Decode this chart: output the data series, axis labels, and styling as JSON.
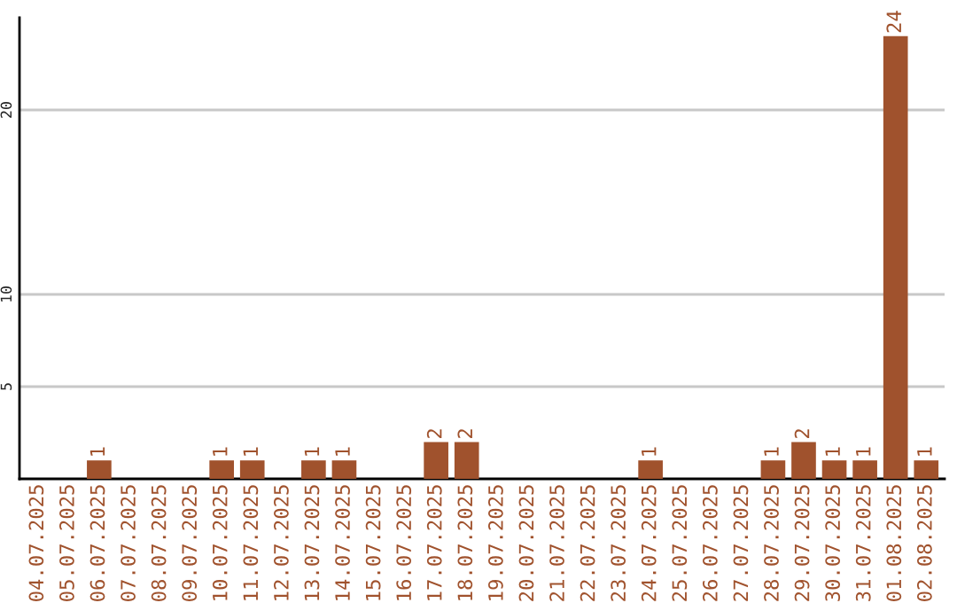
{
  "chart_data": {
    "type": "bar",
    "categories": [
      "04.07.2025",
      "05.07.2025",
      "06.07.2025",
      "07.07.2025",
      "08.07.2025",
      "09.07.2025",
      "10.07.2025",
      "11.07.2025",
      "12.07.2025",
      "13.07.2025",
      "14.07.2025",
      "15.07.2025",
      "16.07.2025",
      "17.07.2025",
      "18.07.2025",
      "19.07.2025",
      "20.07.2025",
      "21.07.2025",
      "22.07.2025",
      "23.07.2025",
      "24.07.2025",
      "25.07.2025",
      "26.07.2025",
      "27.07.2025",
      "28.07.2025",
      "29.07.2025",
      "30.07.2025",
      "31.07.2025",
      "01.08.2025",
      "02.08.2025"
    ],
    "values": [
      0,
      0,
      1,
      0,
      0,
      0,
      1,
      1,
      0,
      1,
      1,
      0,
      0,
      2,
      2,
      0,
      0,
      0,
      0,
      0,
      1,
      0,
      0,
      0,
      1,
      2,
      1,
      1,
      24,
      1
    ],
    "value_labels": [
      null,
      null,
      "1",
      null,
      null,
      null,
      "1",
      "1",
      null,
      "1",
      "1",
      null,
      null,
      "2",
      "2",
      null,
      null,
      null,
      null,
      null,
      "1",
      null,
      null,
      null,
      "1",
      "2",
      "1",
      "1",
      "24",
      "1"
    ],
    "color": "#a0522d",
    "ylim": [
      0,
      25
    ],
    "yticks": [
      5,
      10,
      20
    ],
    "grid": "y"
  }
}
